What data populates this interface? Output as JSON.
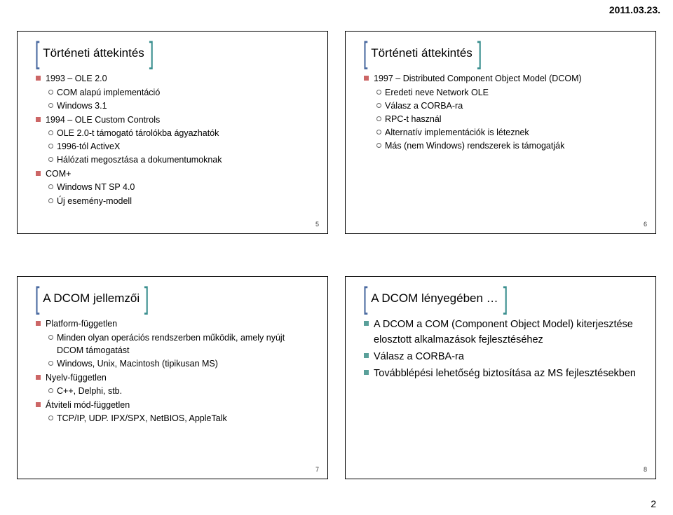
{
  "page": {
    "date": "2011.03.23.",
    "number": "2"
  },
  "colors": {
    "bracket_blue": "#4a6aa0",
    "bracket_teal": "#3a8f8f",
    "bullet_red": "#cc6666",
    "bullet_teal": "#5aa09a"
  },
  "slides": [
    {
      "num": "5",
      "title": "Történeti áttekintés",
      "bracket_left_color": "#4a6aa0",
      "bracket_right_color": "#3a8f8f",
      "bullet_color": "#cc6666",
      "items": [
        {
          "text": "1993 – OLE 2.0",
          "sub": [
            "COM alapú implementáció",
            "Windows 3.1"
          ]
        },
        {
          "text": "1994 – OLE Custom Controls",
          "sub": [
            "OLE 2.0-t támogató tárolókba ágyazhatók",
            "1996-tól ActiveX",
            "Hálózati megosztása a dokumentumoknak"
          ]
        },
        {
          "text": "COM+",
          "sub": [
            "Windows NT SP 4.0",
            "Új esemény-modell"
          ]
        }
      ]
    },
    {
      "num": "6",
      "title": "Történeti áttekintés",
      "bracket_left_color": "#4a6aa0",
      "bracket_right_color": "#3a8f8f",
      "bullet_color": "#cc6666",
      "items": [
        {
          "text": "1997 – Distributed Component Object Model (DCOM)",
          "sub": [
            "Eredeti neve Network OLE",
            "Válasz a CORBA-ra",
            "RPC-t használ",
            "Alternatív implementációk is léteznek",
            "Más (nem Windows) rendszerek is támogatják"
          ]
        }
      ]
    },
    {
      "num": "7",
      "title": "A DCOM jellemzői",
      "bracket_left_color": "#4a6aa0",
      "bracket_right_color": "#3a8f8f",
      "bullet_color": "#cc6666",
      "items": [
        {
          "text": "Platform-független",
          "sub": [
            "Minden olyan operációs rendszerben működik, amely nyújt DCOM támogatást",
            "Windows, Unix, Macintosh (tipikusan MS)"
          ]
        },
        {
          "text": "Nyelv-független",
          "sub": [
            "C++, Delphi, stb."
          ]
        },
        {
          "text": "Átviteli mód-független",
          "sub": [
            "TCP/IP, UDP. IPX/SPX, NetBIOS, AppleTalk"
          ]
        }
      ]
    },
    {
      "num": "8",
      "title": "A DCOM lényegében …",
      "bracket_left_color": "#4a6aa0",
      "bracket_right_color": "#3a8f8f",
      "bullet_color": "#5aa09a",
      "title_fontsize": 17,
      "large": true,
      "items": [
        {
          "text": "A DCOM a COM (Component Object Model) kiterjesztése elosztott alkalmazások fejlesztéséhez"
        },
        {
          "text": "Válasz a CORBA-ra"
        },
        {
          "text": "Továbblépési lehetőség biztosítása az MS fejlesztésekben"
        }
      ]
    }
  ]
}
